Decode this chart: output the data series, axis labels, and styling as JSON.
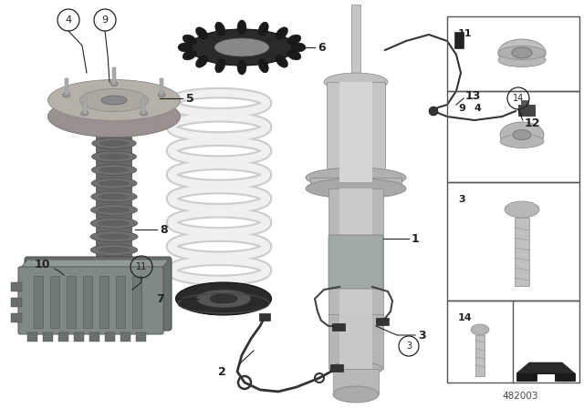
{
  "bg_color": "#ffffff",
  "part_number": "482003",
  "line_color": "#222222",
  "label_fontsize": 9,
  "strut_color": "#b8baba",
  "strut_dark": "#888a8a",
  "boot_color": "#707070",
  "spring_color": "#e8e8e8",
  "ring_color": "#2a2a2a",
  "cu_color": "#808080"
}
